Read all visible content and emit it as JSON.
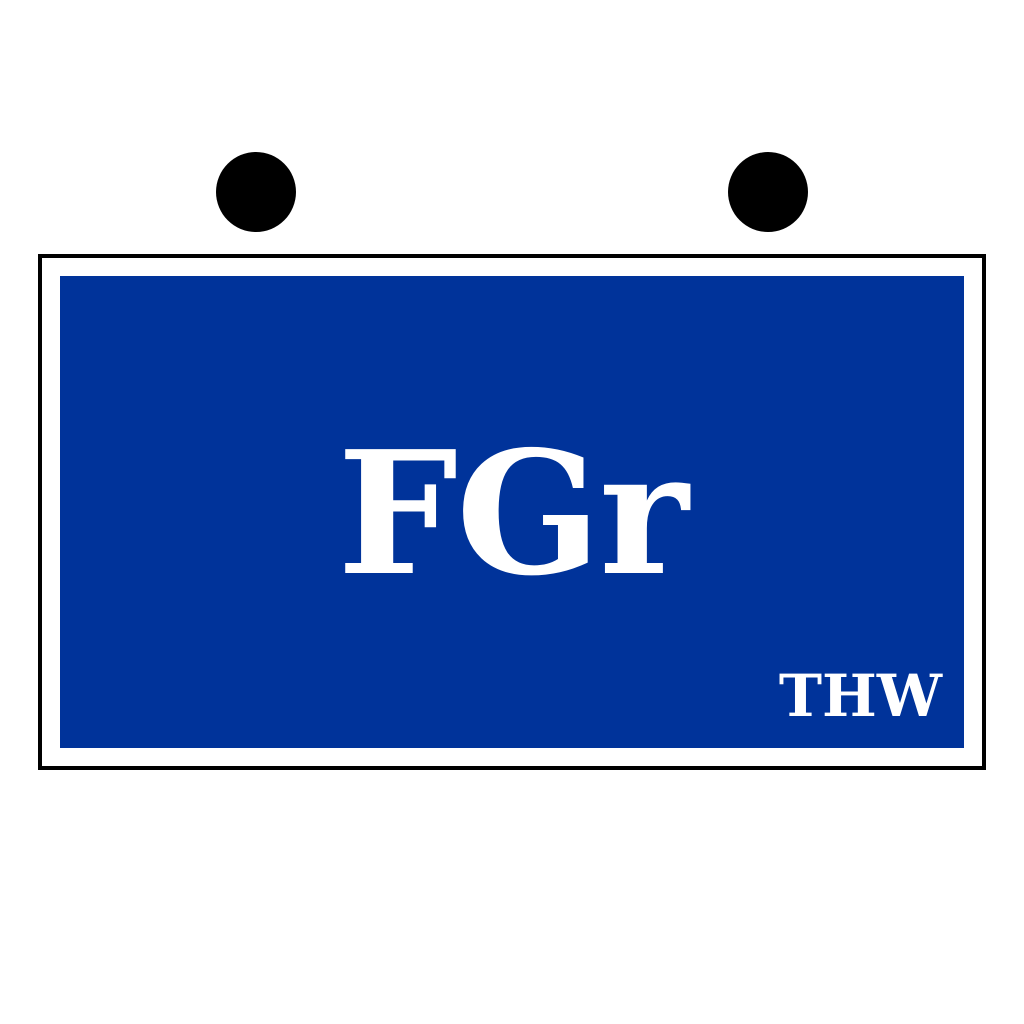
{
  "sign": {
    "main_text": "FGr",
    "org_text": "THW"
  },
  "colors": {
    "panel": "#00339a",
    "text": "#ffffff",
    "frame": "#000000",
    "background": "#ffffff",
    "mounting_dots": "#000000"
  }
}
